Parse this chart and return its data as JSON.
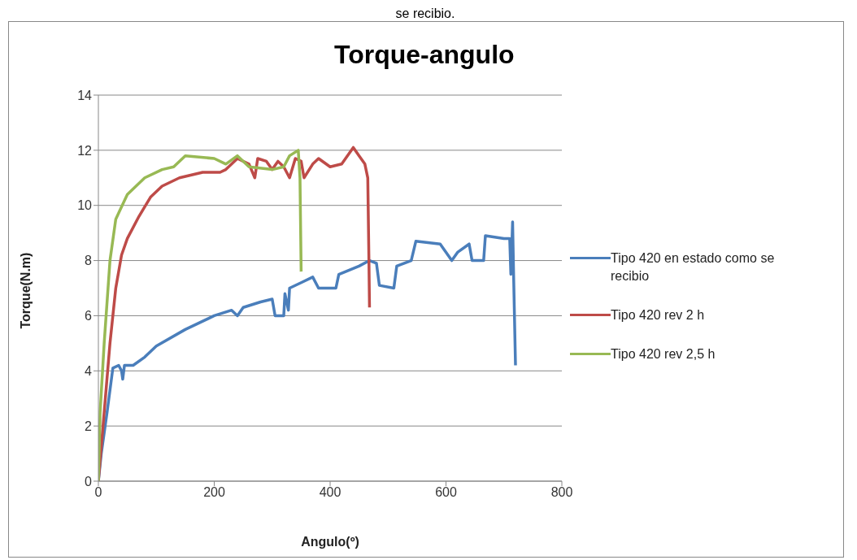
{
  "chart_data": {
    "type": "line",
    "title": "Torque-angulo",
    "xlabel": "Angulo(º)",
    "ylabel": "Torque(N.m)",
    "annotations": [
      "se recibio."
    ],
    "xlim": [
      0,
      800
    ],
    "xticks": [
      0,
      200,
      400,
      600,
      800
    ],
    "ylim": [
      0,
      14
    ],
    "yticks": [
      0,
      2,
      4,
      6,
      8,
      10,
      12,
      14
    ],
    "grid": "y",
    "legend": "right",
    "marker": "none",
    "line_style": "solid",
    "series": [
      {
        "name": "Tipo 420 en estado como se recibio",
        "color": "#4a7ebb",
        "x": [
          0,
          5,
          15,
          25,
          35,
          40,
          42,
          45,
          60,
          80,
          100,
          150,
          200,
          230,
          240,
          250,
          280,
          300,
          305,
          320,
          322,
          328,
          330,
          350,
          370,
          380,
          410,
          415,
          450,
          468,
          480,
          485,
          510,
          515,
          540,
          548,
          590,
          610,
          620,
          640,
          645,
          665,
          668,
          700,
          710,
          712,
          715,
          717,
          720
        ],
        "values": [
          0,
          1,
          2.5,
          4.1,
          4.2,
          4,
          3.7,
          4.2,
          4.2,
          4.5,
          4.9,
          5.5,
          6,
          6.2,
          6,
          6.3,
          6.5,
          6.6,
          6,
          6,
          6.8,
          6.2,
          7,
          7.2,
          7.4,
          7,
          7,
          7.5,
          7.8,
          8,
          7.9,
          7.1,
          7,
          7.8,
          8,
          8.7,
          8.6,
          8,
          8.3,
          8.6,
          8,
          8,
          8.9,
          8.8,
          8.8,
          7.5,
          9.4,
          7.2,
          4.2
        ]
      },
      {
        "name": "Tipo 420 rev 2 h",
        "color": "#be4b48",
        "x": [
          0,
          10,
          20,
          30,
          40,
          50,
          70,
          90,
          110,
          140,
          180,
          210,
          220,
          230,
          240,
          260,
          270,
          275,
          290,
          300,
          310,
          320,
          330,
          340,
          350,
          355,
          370,
          380,
          400,
          420,
          440,
          450,
          460,
          465,
          467,
          468
        ],
        "values": [
          0,
          2.5,
          5,
          7,
          8.2,
          8.8,
          9.6,
          10.3,
          10.7,
          11,
          11.2,
          11.2,
          11.3,
          11.5,
          11.7,
          11.5,
          11,
          11.7,
          11.6,
          11.3,
          11.6,
          11.4,
          11,
          11.7,
          11.6,
          11,
          11.5,
          11.7,
          11.4,
          11.5,
          12.1,
          11.8,
          11.5,
          11,
          8,
          6.3
        ]
      },
      {
        "name": "Tipo 420 rev 2,5 h",
        "color": "#98b954",
        "x": [
          0,
          3,
          10,
          20,
          30,
          50,
          80,
          110,
          130,
          150,
          200,
          220,
          240,
          260,
          300,
          320,
          330,
          345,
          348,
          350
        ],
        "values": [
          0,
          2.5,
          5,
          8,
          9.5,
          10.4,
          11,
          11.3,
          11.4,
          11.8,
          11.7,
          11.5,
          11.8,
          11.4,
          11.3,
          11.4,
          11.8,
          12,
          11,
          7.6
        ]
      }
    ]
  }
}
